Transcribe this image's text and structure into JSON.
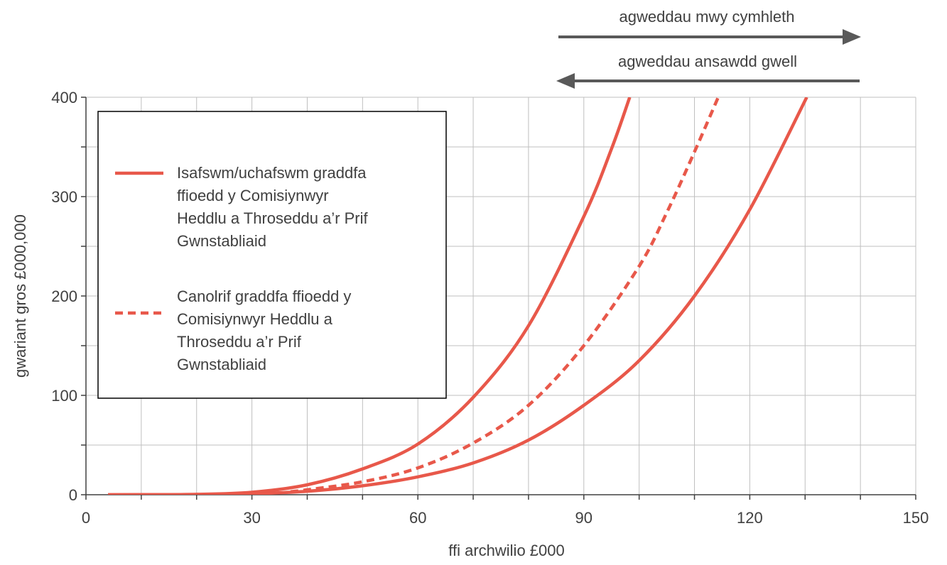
{
  "chart_data": {
    "type": "line",
    "xlabel": "ffi archwilio £000",
    "ylabel": "gwariant gros £000,000",
    "xlim": [
      0,
      150
    ],
    "ylim": [
      0,
      400
    ],
    "x_ticks": [
      "0",
      "30",
      "60",
      "90",
      "120",
      "150"
    ],
    "y_ticks": [
      "0",
      "100",
      "200",
      "300",
      "400"
    ],
    "grid": true,
    "legend_position": "top-left",
    "colors": {
      "series": "#e8584a",
      "axis": "#404040",
      "grid": "#bfbfbf",
      "arrow": "#595959"
    },
    "legend": [
      {
        "label": "Isafswm/uchafswm graddfa ffioedd y Comisiynwyr Heddlu a Throseddu a’r Prif Gwnstabliaid",
        "style": "solid"
      },
      {
        "label": "Canolrif graddfa ffioedd y Comisiynwyr Heddlu a Throseddu a’r Prif Gwnstabliaid",
        "style": "dashed"
      }
    ],
    "series": [
      {
        "style": "solid",
        "x": [
          4,
          10,
          20,
          30,
          40,
          50,
          60,
          70,
          80,
          90,
          95,
          98.3
        ],
        "y": [
          0,
          0.05,
          0.4,
          2.5,
          10,
          26,
          51,
          98,
          170,
          280,
          348,
          400
        ]
      },
      {
        "style": "dashed",
        "x": [
          37,
          40,
          50,
          60,
          70,
          80,
          90,
          100,
          105,
          110,
          114.3
        ],
        "y": [
          3,
          5,
          13,
          27,
          52,
          90,
          150,
          230,
          284,
          345,
          400
        ]
      },
      {
        "style": "solid",
        "x": [
          4,
          10,
          20,
          30,
          40,
          50,
          60,
          70,
          80,
          90,
          100,
          110,
          120,
          130.3
        ],
        "y": [
          0,
          0.05,
          0.2,
          1,
          3.5,
          9,
          18,
          32,
          55,
          90,
          135,
          200,
          287,
          400
        ]
      }
    ],
    "annotations": [
      {
        "text": "agweddau mwy cymhleth",
        "direction": "right"
      },
      {
        "text": "agweddau ansawdd gwell",
        "direction": "left"
      }
    ]
  }
}
